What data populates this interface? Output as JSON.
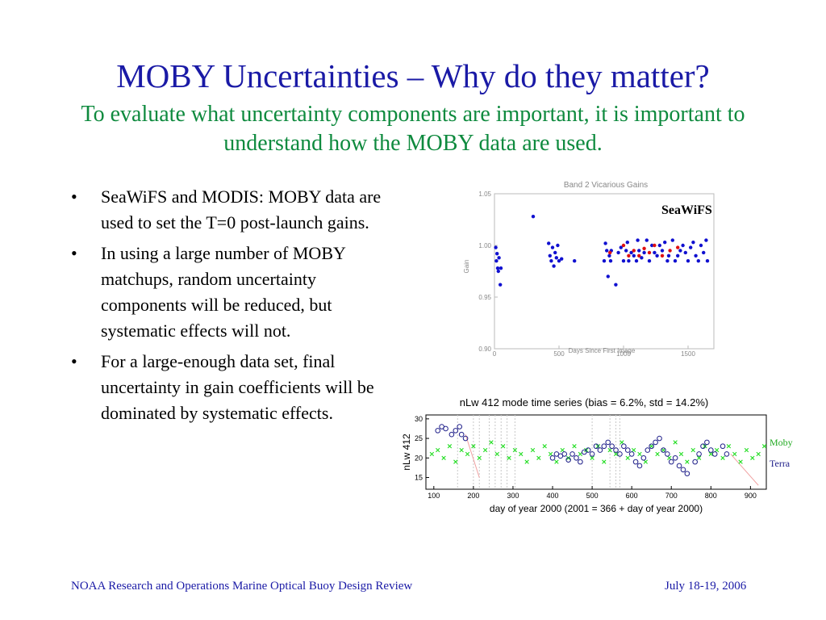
{
  "title": "MOBY Uncertainties – Why do they matter?",
  "subtitle": "To evaluate what uncertainty components are important, it is important to understand how the MOBY data are used.",
  "bullets": [
    "SeaWiFS and MODIS:  MOBY data are used to set the T=0 post-launch gains.",
    "In using a large number of MOBY matchups, random uncertainty components will be reduced, but systematic effects will not.",
    "For a large-enough data set, final uncertainty in gain coefficients will be dominated by systematic effects."
  ],
  "bullet_symbol": "•",
  "footer": {
    "left": "NOAA Research and Operations Marine Optical Buoy Design Review",
    "right": "July 18-19, 2006"
  },
  "colors": {
    "title": "#1a1aa6",
    "subtitle": "#0e8a3e",
    "blue_points": "#1010d0",
    "red_points": "#e01010",
    "green_points": "#22dd22",
    "navy_circles": "#20208a"
  },
  "chart_data": [
    {
      "type": "scatter",
      "title": "Band 2 Vicarious Gains",
      "label": "SeaWiFS",
      "xlabel": "Days Since First Image",
      "ylabel": "Gain",
      "xlim": [
        0,
        1700
      ],
      "ylim": [
        0.9,
        1.05
      ],
      "xticks": [
        "0",
        "500",
        "1000",
        "1500"
      ],
      "yticks": [
        "0.90",
        "0.95",
        "1.00",
        "1.05"
      ],
      "series": [
        {
          "name": "blue",
          "points": [
            [
              10,
              0.998
            ],
            [
              15,
              0.985
            ],
            [
              20,
              0.992
            ],
            [
              25,
              0.978
            ],
            [
              30,
              0.975
            ],
            [
              35,
              0.988
            ],
            [
              45,
              0.962
            ],
            [
              50,
              0.978
            ],
            [
              300,
              1.028
            ],
            [
              420,
              1.002
            ],
            [
              430,
              0.99
            ],
            [
              440,
              0.985
            ],
            [
              450,
              0.998
            ],
            [
              460,
              0.98
            ],
            [
              470,
              0.993
            ],
            [
              480,
              0.988
            ],
            [
              490,
              1.0
            ],
            [
              500,
              0.985
            ],
            [
              520,
              0.987
            ],
            [
              620,
              0.985
            ],
            [
              850,
              0.985
            ],
            [
              860,
              1.002
            ],
            [
              870,
              0.995
            ],
            [
              880,
              0.97
            ],
            [
              890,
              0.99
            ],
            [
              900,
              0.985
            ],
            [
              905,
              0.995
            ],
            [
              940,
              0.962
            ],
            [
              960,
              0.993
            ],
            [
              980,
              0.998
            ],
            [
              1000,
              0.985
            ],
            [
              1020,
              0.995
            ],
            [
              1030,
              1.003
            ],
            [
              1040,
              0.985
            ],
            [
              1060,
              0.993
            ],
            [
              1080,
              0.99
            ],
            [
              1100,
              0.985
            ],
            [
              1110,
              1.005
            ],
            [
              1120,
              0.995
            ],
            [
              1140,
              0.988
            ],
            [
              1160,
              0.993
            ],
            [
              1180,
              1.005
            ],
            [
              1200,
              0.985
            ],
            [
              1220,
              1.0
            ],
            [
              1240,
              0.993
            ],
            [
              1260,
              0.99
            ],
            [
              1280,
              1.0
            ],
            [
              1300,
              0.995
            ],
            [
              1320,
              1.003
            ],
            [
              1340,
              0.985
            ],
            [
              1350,
              0.99
            ],
            [
              1380,
              1.005
            ],
            [
              1400,
              0.985
            ],
            [
              1420,
              0.99
            ],
            [
              1440,
              0.995
            ],
            [
              1460,
              1.0
            ],
            [
              1480,
              0.993
            ],
            [
              1500,
              0.985
            ],
            [
              1520,
              0.998
            ],
            [
              1540,
              1.003
            ],
            [
              1560,
              0.99
            ],
            [
              1580,
              0.985
            ],
            [
              1600,
              1.0
            ],
            [
              1620,
              0.993
            ],
            [
              1640,
              1.005
            ],
            [
              1650,
              0.985
            ]
          ]
        },
        {
          "name": "red",
          "points": [
            [
              895,
              0.993
            ],
            [
              1000,
              1.0
            ],
            [
              1040,
              0.99
            ],
            [
              1080,
              0.995
            ],
            [
              1120,
              0.99
            ],
            [
              1160,
              0.997
            ],
            [
              1200,
              0.993
            ],
            [
              1240,
              1.0
            ],
            [
              1300,
              0.99
            ],
            [
              1360,
              0.995
            ],
            [
              1420,
              0.998
            ]
          ]
        }
      ]
    },
    {
      "type": "scatter",
      "title": "nLw 412 mode time series (bias =  6.2%,  std = 14.2%)",
      "xlabel": "day of year 2000 (2001 = 366 + day of year 2000)",
      "ylabel": "nLw 412",
      "xlim": [
        80,
        940
      ],
      "ylim": [
        12,
        31
      ],
      "xticks": [
        "100",
        "200",
        "300",
        "400",
        "500",
        "600",
        "700",
        "800",
        "900"
      ],
      "yticks": [
        "15",
        "20",
        "25",
        "30"
      ],
      "legend": [
        "Moby",
        "Terra"
      ],
      "series": [
        {
          "name": "Moby",
          "marker": "x",
          "points": [
            [
              95,
              21
            ],
            [
              110,
              22
            ],
            [
              125,
              20
            ],
            [
              140,
              23
            ],
            [
              155,
              19
            ],
            [
              170,
              22
            ],
            [
              185,
              21
            ],
            [
              200,
              23
            ],
            [
              215,
              20
            ],
            [
              230,
              22
            ],
            [
              245,
              24
            ],
            [
              260,
              21
            ],
            [
              275,
              23
            ],
            [
              290,
              20
            ],
            [
              305,
              22
            ],
            [
              320,
              21
            ],
            [
              335,
              19
            ],
            [
              350,
              22
            ],
            [
              365,
              20
            ],
            [
              380,
              23
            ],
            [
              395,
              21
            ],
            [
              410,
              19
            ],
            [
              425,
              22
            ],
            [
              440,
              20
            ],
            [
              455,
              23
            ],
            [
              470,
              21
            ],
            [
              485,
              22
            ],
            [
              500,
              20
            ],
            [
              515,
              23
            ],
            [
              530,
              19
            ],
            [
              545,
              22
            ],
            [
              560,
              21
            ],
            [
              575,
              24
            ],
            [
              590,
              20
            ],
            [
              605,
              22
            ],
            [
              620,
              21
            ],
            [
              635,
              19
            ],
            [
              650,
              23
            ],
            [
              665,
              21
            ],
            [
              680,
              22
            ],
            [
              695,
              20
            ],
            [
              710,
              24
            ],
            [
              725,
              21
            ],
            [
              740,
              19
            ],
            [
              755,
              22
            ],
            [
              770,
              20
            ],
            [
              785,
              23
            ],
            [
              800,
              21
            ],
            [
              815,
              22
            ],
            [
              830,
              20
            ],
            [
              845,
              23
            ],
            [
              860,
              21
            ],
            [
              875,
              19
            ],
            [
              890,
              22
            ],
            [
              905,
              20
            ],
            [
              920,
              21
            ],
            [
              935,
              23
            ]
          ]
        },
        {
          "name": "Terra",
          "marker": "o",
          "points": [
            [
              110,
              27
            ],
            [
              120,
              28
            ],
            [
              130,
              27.5
            ],
            [
              145,
              26
            ],
            [
              155,
              27
            ],
            [
              165,
              28
            ],
            [
              170,
              26
            ],
            [
              180,
              25
            ],
            [
              400,
              20
            ],
            [
              410,
              21
            ],
            [
              420,
              20.5
            ],
            [
              430,
              21
            ],
            [
              440,
              19.5
            ],
            [
              450,
              21
            ],
            [
              460,
              20
            ],
            [
              470,
              19
            ],
            [
              480,
              21.5
            ],
            [
              490,
              22
            ],
            [
              500,
              21
            ],
            [
              510,
              23
            ],
            [
              520,
              22
            ],
            [
              530,
              23
            ],
            [
              540,
              24
            ],
            [
              550,
              23
            ],
            [
              560,
              22
            ],
            [
              570,
              21
            ],
            [
              580,
              23
            ],
            [
              590,
              22
            ],
            [
              600,
              21
            ],
            [
              610,
              19
            ],
            [
              620,
              18
            ],
            [
              630,
              20
            ],
            [
              640,
              22
            ],
            [
              650,
              23
            ],
            [
              660,
              24
            ],
            [
              670,
              25
            ],
            [
              680,
              22
            ],
            [
              690,
              21
            ],
            [
              700,
              19
            ],
            [
              710,
              20
            ],
            [
              720,
              18
            ],
            [
              730,
              17
            ],
            [
              740,
              16
            ],
            [
              760,
              19
            ],
            [
              770,
              21
            ],
            [
              780,
              23
            ],
            [
              790,
              24
            ],
            [
              800,
              22
            ],
            [
              810,
              21
            ],
            [
              830,
              23
            ],
            [
              840,
              21
            ]
          ]
        }
      ]
    }
  ]
}
